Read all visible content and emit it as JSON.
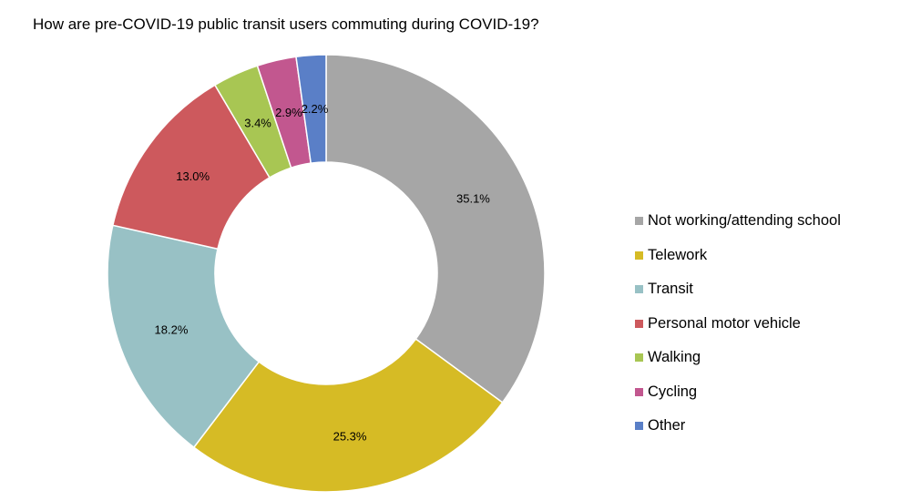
{
  "chart_data": {
    "type": "pie",
    "variant": "donut",
    "title": "How are pre-COVID-19 public transit users commuting during COVID-19?",
    "legend_position": "right",
    "slices": [
      {
        "label": "Not working/attending school",
        "value": 35.1,
        "display": "35.1%",
        "color": "#a6a6a6"
      },
      {
        "label": "Telework",
        "value": 25.3,
        "display": "25.3%",
        "color": "#d6bb25"
      },
      {
        "label": "Transit",
        "value": 18.2,
        "display": "18.2%",
        "color": "#98c1c5"
      },
      {
        "label": "Personal motor vehicle",
        "value": 13.0,
        "display": "13.0%",
        "color": "#cd595d"
      },
      {
        "label": "Walking",
        "value": 3.4,
        "display": "3.4%",
        "color": "#a8c653"
      },
      {
        "label": "Cycling",
        "value": 2.9,
        "display": "2.9%",
        "color": "#c2578f"
      },
      {
        "label": "Other",
        "value": 2.2,
        "display": "2.2%",
        "color": "#5a7fc7"
      }
    ]
  }
}
